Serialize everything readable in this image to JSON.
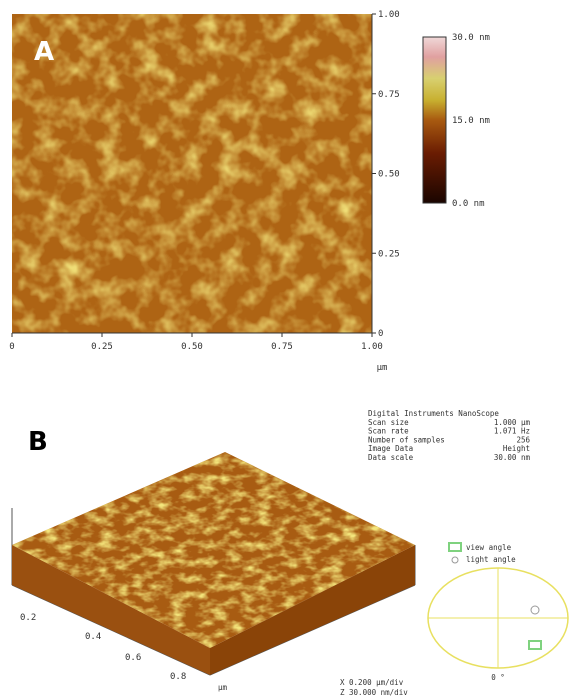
{
  "panel_a": {
    "label": "A",
    "x_ticks": [
      "0",
      "0.25",
      "0.50",
      "0.75",
      "1.00"
    ],
    "y_ticks": [
      "0",
      "0.25",
      "0.50",
      "0.75",
      "1.00"
    ],
    "x_unit": "µm",
    "colorbar_labels": [
      "30.0 nm",
      "15.0 nm",
      "0.0 nm"
    ]
  },
  "panel_b": {
    "label": "B",
    "info": [
      [
        "Digital Instruments NanoScope",
        ""
      ],
      [
        "Scan size",
        "1.000 µm"
      ],
      [
        "Scan rate",
        "1.071 Hz"
      ],
      [
        "Number of samples",
        "256"
      ],
      [
        "Image Data",
        "Height"
      ],
      [
        "Data scale",
        "30.00 nm"
      ]
    ],
    "axis_ticks": [
      "0.2",
      "0.4",
      "0.6",
      "0.8"
    ],
    "axis_unit": "µm",
    "legend": [
      "view angle",
      "light angle"
    ],
    "angle": "0 °",
    "scale": [
      "X  0.200 µm/div",
      "Z  30.000 nm/div"
    ]
  }
}
